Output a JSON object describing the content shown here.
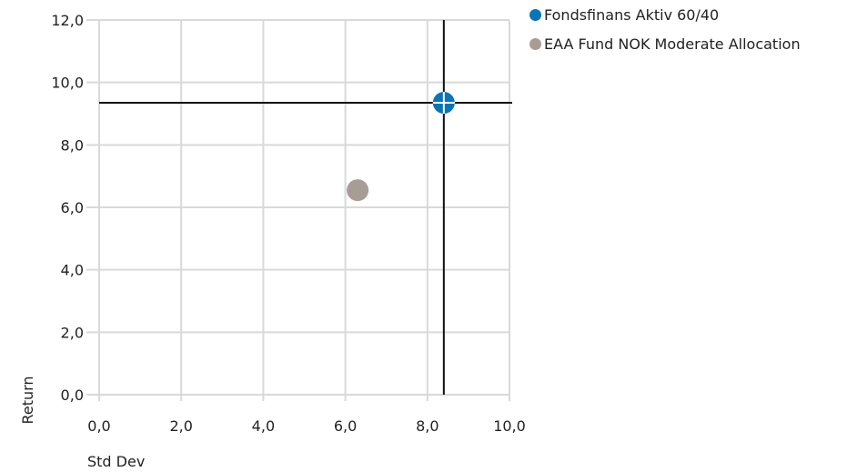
{
  "chart_data": {
    "type": "scatter",
    "xlabel": "Std Dev",
    "ylabel": "Return",
    "xlim": [
      0,
      10
    ],
    "ylim": [
      0,
      12
    ],
    "x_ticks": [
      "0,0",
      "2,0",
      "4,0",
      "6,0",
      "8,0",
      "10,0"
    ],
    "y_ticks": [
      "0,0",
      "2,0",
      "4,0",
      "6,0",
      "8,0",
      "10,0",
      "12,0"
    ],
    "grid": true,
    "legend_position": "top-right",
    "series": [
      {
        "name": "Fondsfinans Aktiv 60/40",
        "x": 8.4,
        "y": 9.35,
        "color": "#0a74b5",
        "crosshair": true
      },
      {
        "name": "EAA Fund NOK Moderate Allocation",
        "x": 6.3,
        "y": 6.55,
        "color": "#a89d95",
        "crosshair": false
      }
    ]
  }
}
